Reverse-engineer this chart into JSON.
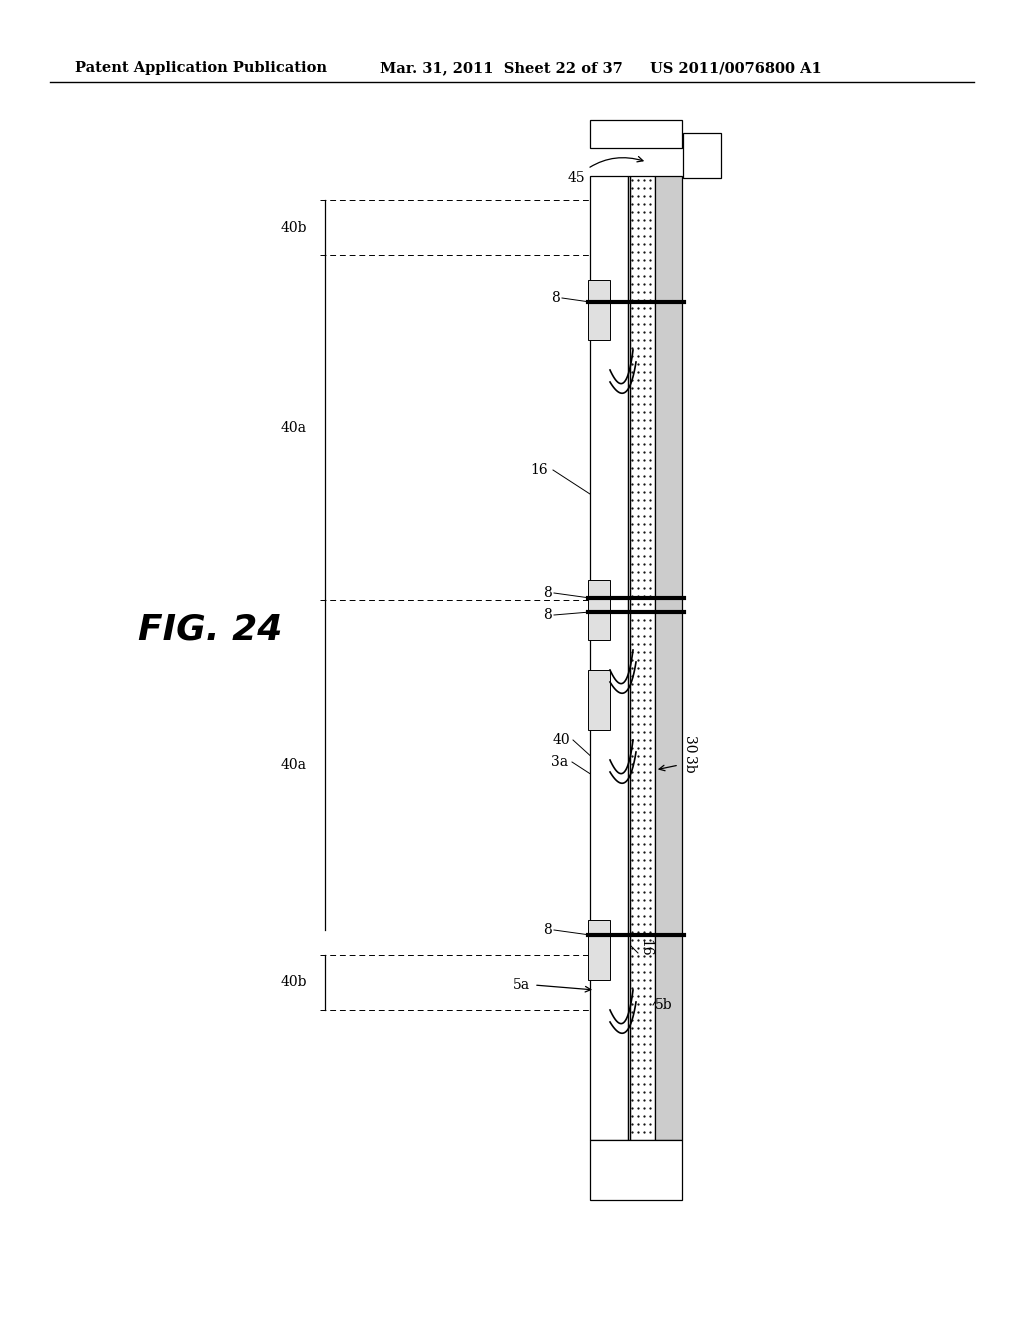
{
  "title_left": "Patent Application Publication",
  "title_mid": "Mar. 31, 2011  Sheet 22 of 37",
  "title_right": "US 2011/0076800 A1",
  "fig_label": "FIG. 24",
  "bg_color": "#ffffff",
  "line_color": "#000000",
  "header_fontsize": 10.5,
  "fig_label_fontsize": 26,
  "annotation_fontsize": 10
}
